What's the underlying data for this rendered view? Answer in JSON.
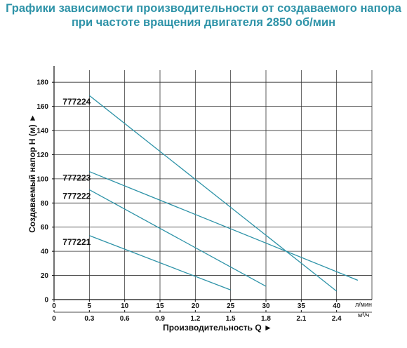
{
  "header": {
    "title_line1": "Графики зависимости производительности от создаваемого напора",
    "title_line2": "при частоте вращения двигателя 2850 об/мин"
  },
  "colors": {
    "title": "#2e93a8",
    "line": "#2e93a8",
    "grid": "#333333"
  },
  "chart_data": {
    "type": "line",
    "title": "Графики зависимости производительности от создаваемого напора при частоте вращения двигателя 2850 об/мин",
    "xlabel": "Производительность Q ►",
    "ylabel": "Создаваемый напор H (м) ►",
    "x_unit_primary": "л/мин",
    "x_unit_secondary": "м³/ч",
    "xlim": [
      0,
      45
    ],
    "ylim": [
      0,
      190
    ],
    "x_ticks": [
      "0",
      "5",
      "10",
      "15",
      "20",
      "25",
      "30",
      "35",
      "40"
    ],
    "x_ticks_secondary": [
      "0",
      "0.3",
      "0.6",
      "0.9",
      "1.2",
      "1.5",
      "1.8",
      "2.1",
      "2.4"
    ],
    "y_ticks": [
      "0",
      "20",
      "40",
      "60",
      "80",
      "100",
      "120",
      "140",
      "160",
      "180"
    ],
    "grid": true,
    "series": [
      {
        "name": "777224",
        "points": [
          [
            5,
            169
          ],
          [
            40,
            7
          ]
        ]
      },
      {
        "name": "777223",
        "points": [
          [
            5,
            106
          ],
          [
            43,
            16
          ]
        ]
      },
      {
        "name": "777222",
        "points": [
          [
            5,
            91
          ],
          [
            30,
            11
          ]
        ]
      },
      {
        "name": "777221",
        "points": [
          [
            5,
            53
          ],
          [
            25,
            8
          ]
        ]
      }
    ]
  }
}
